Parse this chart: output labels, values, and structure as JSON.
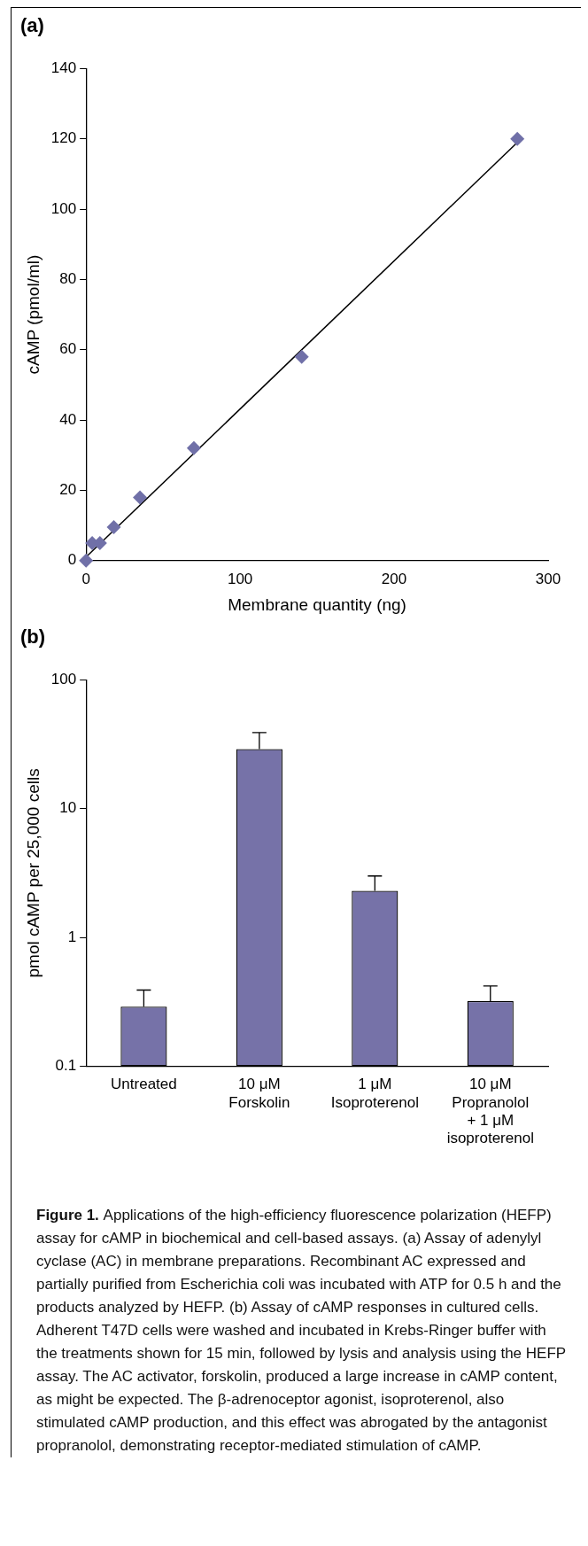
{
  "chart_data": [
    {
      "type": "scatter",
      "title": "(a)",
      "xlabel": "Membrane quantity (ng)",
      "ylabel": "cAMP (pmol/ml)",
      "xlim": [
        0,
        300
      ],
      "xticks": [
        0,
        100,
        200,
        300
      ],
      "ylim": [
        0,
        140
      ],
      "yticks": [
        0,
        20,
        40,
        60,
        80,
        100,
        120,
        140
      ],
      "series": [
        {
          "type": "scatter",
          "marker": "diamond",
          "color": "#7070a8",
          "x": [
            0,
            4,
            9,
            18,
            35,
            70,
            140,
            280
          ],
          "values": [
            0,
            5,
            5,
            9.5,
            18,
            32,
            58,
            120
          ]
        },
        {
          "type": "line",
          "marker": "none",
          "line_style": "solid",
          "color": "#000000",
          "x": [
            0,
            280
          ],
          "values": [
            1,
            119
          ]
        }
      ]
    },
    {
      "type": "bar",
      "title": "(b)",
      "ylabel": "pmol cAMP per 25,000 cells",
      "log": true,
      "ylim": [
        0.1,
        100
      ],
      "yticks": [
        0.1,
        1,
        10,
        100
      ],
      "categories": [
        "Untreated",
        "10 μM\nForskolin",
        "1 μM\nIsoproterenol",
        "10 μM\nPropranolol\n+ 1 μM\nisoproterenol"
      ],
      "values": [
        0.29,
        29,
        2.3,
        0.32
      ],
      "color": "#7672a8",
      "errors": [
        [
          0.29,
          0.39
        ],
        [
          29,
          39
        ],
        [
          2.3,
          3.0
        ],
        [
          0.32,
          0.42
        ]
      ],
      "annotations": [
        "Figure 1.",
        "Applications of the high-efficiency fluorescence polarization (HEFP) assay for cAMP in biochemical and cell-based assays. (a) Assay of adenylyl cyclase (AC) in membrane preparations. Recombinant AC expressed and partially purified from Escherichia coli was incubated with ATP for 0.5 h and the products analyzed by HEFP. (b) Assay of cAMP responses in cultured cells. Adherent T47D cells were washed and incubated in Krebs-Ringer buffer with the treatments shown for 15 min, followed by lysis and analysis using the HEFP assay. The AC activator, forskolin, produced a large increase in cAMP content, as might be expected. The β-adrenoceptor agonist, isoproterenol, also stimulated cAMP production, and this effect was abrogated by the antagonist propranolol, demonstrating receptor-mediated stimulation of cAMP."
      ]
    }
  ]
}
